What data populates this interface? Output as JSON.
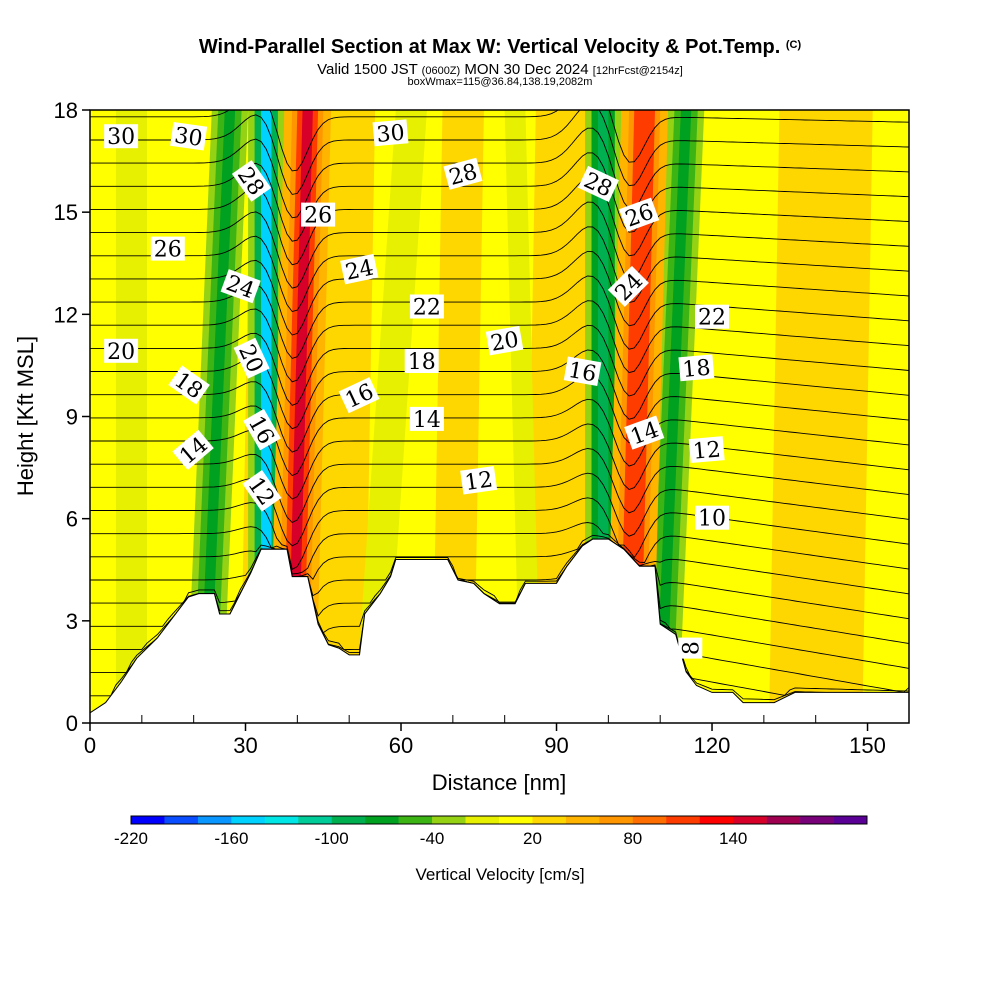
{
  "header": {
    "title_main": "Wind-Parallel Section at Max W: Vertical Velocity & Pot.Temp.",
    "title_mark": "(C)",
    "valid_prefix": "Valid 1500 JST",
    "valid_utc": "(0600Z)",
    "valid_date": "MON 30 Dec 2024",
    "fcst": "[12hrFcst@2154z]",
    "box_info": "boxWmax=115@36.84,138.19,2082m"
  },
  "colorbar": {
    "label": "Vertical Velocity [cm/s]",
    "colors": [
      "#0000ff",
      "#0a4cff",
      "#0a96ff",
      "#00d2ff",
      "#00e6e6",
      "#00cc99",
      "#00b050",
      "#00a020",
      "#3cb414",
      "#96d214",
      "#e6f000",
      "#ffff00",
      "#ffd700",
      "#ffb400",
      "#ff9600",
      "#ff6e00",
      "#ff3c00",
      "#ff0000",
      "#d70028",
      "#a00050",
      "#780078",
      "#5a0096"
    ],
    "tick_labels": [
      "-220",
      "-160",
      "-100",
      "-40",
      "20",
      "80",
      "140"
    ]
  },
  "chart_data": {
    "type": "heatmap",
    "xlabel": "Distance [nm]",
    "ylabel": "Height [Kft MSL]",
    "xlim": [
      0,
      158
    ],
    "ylim": [
      0,
      18
    ],
    "x_ticks": [
      "0",
      "30",
      "60",
      "90",
      "120",
      "150"
    ],
    "y_ticks": [
      "0",
      "3",
      "6",
      "9",
      "12",
      "15",
      "18"
    ],
    "terrain_kft": [
      [
        0,
        0.3
      ],
      [
        3,
        0.6
      ],
      [
        6,
        1.2
      ],
      [
        9,
        1.9
      ],
      [
        13,
        2.5
      ],
      [
        16,
        3.1
      ],
      [
        19,
        3.7
      ],
      [
        21,
        3.8
      ],
      [
        24,
        3.8
      ],
      [
        25,
        3.2
      ],
      [
        27,
        3.2
      ],
      [
        29,
        3.8
      ],
      [
        31,
        4.4
      ],
      [
        33,
        5.1
      ],
      [
        35,
        5.1
      ],
      [
        38,
        5.1
      ],
      [
        39,
        4.3
      ],
      [
        42,
        4.3
      ],
      [
        44,
        2.9
      ],
      [
        46,
        2.3
      ],
      [
        48,
        2.2
      ],
      [
        50,
        2.0
      ],
      [
        52,
        2.0
      ],
      [
        53,
        3.2
      ],
      [
        56,
        3.8
      ],
      [
        58,
        4.3
      ],
      [
        59,
        4.8
      ],
      [
        63,
        4.8
      ],
      [
        66,
        4.8
      ],
      [
        69,
        4.8
      ],
      [
        71,
        4.2
      ],
      [
        74,
        4.1
      ],
      [
        76,
        3.8
      ],
      [
        79,
        3.5
      ],
      [
        82,
        3.5
      ],
      [
        84,
        4.1
      ],
      [
        87,
        4.1
      ],
      [
        90,
        4.1
      ],
      [
        92,
        4.6
      ],
      [
        95,
        5.2
      ],
      [
        97,
        5.4
      ],
      [
        100,
        5.4
      ],
      [
        103,
        5.1
      ],
      [
        106,
        4.6
      ],
      [
        109,
        4.6
      ],
      [
        110,
        2.9
      ],
      [
        113,
        2.6
      ],
      [
        115,
        1.5
      ],
      [
        117,
        1.1
      ],
      [
        120,
        0.9
      ],
      [
        124,
        0.9
      ],
      [
        126,
        0.6
      ],
      [
        129,
        0.6
      ],
      [
        132,
        0.6
      ],
      [
        136,
        0.9
      ],
      [
        140,
        0.9
      ],
      [
        145,
        0.9
      ],
      [
        150,
        0.9
      ],
      [
        158,
        0.9
      ]
    ],
    "updraft_bands": [
      {
        "x_bottom": 39,
        "x_top": 42,
        "w_cms": 140
      },
      {
        "x_bottom": 104,
        "x_top": 107,
        "w_cms": 110
      }
    ],
    "downdraft_bands": [
      {
        "x_bottom": 34,
        "x_top": 34,
        "w_cms": -160
      },
      {
        "x_bottom": 22,
        "x_top": 27,
        "w_cms": -80
      },
      {
        "x_bottom": 99,
        "x_top": 99,
        "w_cms": -100
      },
      {
        "x_bottom": 110,
        "x_top": 115,
        "w_cms": -80
      }
    ],
    "contour_labels": [
      {
        "text": "30",
        "x": 6,
        "y": 17.2,
        "rot": 0
      },
      {
        "text": "30",
        "x": 19,
        "y": 17.2,
        "rot": 8
      },
      {
        "text": "30",
        "x": 58,
        "y": 17.3,
        "rot": -5
      },
      {
        "text": "28",
        "x": 31,
        "y": 15.9,
        "rot": 55
      },
      {
        "text": "28",
        "x": 72,
        "y": 16.1,
        "rot": -15
      },
      {
        "text": "28",
        "x": 98,
        "y": 15.8,
        "rot": 25
      },
      {
        "text": "26",
        "x": 15,
        "y": 13.9,
        "rot": 0
      },
      {
        "text": "26",
        "x": 44,
        "y": 14.9,
        "rot": 0
      },
      {
        "text": "26",
        "x": 106,
        "y": 14.9,
        "rot": -20
      },
      {
        "text": "24",
        "x": 29,
        "y": 12.8,
        "rot": 20
      },
      {
        "text": "24",
        "x": 52,
        "y": 13.3,
        "rot": -12
      },
      {
        "text": "24",
        "x": 104,
        "y": 12.8,
        "rot": -45
      },
      {
        "text": "22",
        "x": 65,
        "y": 12.2,
        "rot": 0
      },
      {
        "text": "22",
        "x": 120,
        "y": 11.9,
        "rot": 0
      },
      {
        "text": "20",
        "x": 6,
        "y": 10.9,
        "rot": 0
      },
      {
        "text": "20",
        "x": 31,
        "y": 10.7,
        "rot": 65
      },
      {
        "text": "20",
        "x": 80,
        "y": 11.2,
        "rot": -10
      },
      {
        "text": "18",
        "x": 19,
        "y": 9.9,
        "rot": 35
      },
      {
        "text": "18",
        "x": 64,
        "y": 10.6,
        "rot": 0
      },
      {
        "text": "18",
        "x": 117,
        "y": 10.4,
        "rot": -5
      },
      {
        "text": "16",
        "x": 33,
        "y": 8.6,
        "rot": 60
      },
      {
        "text": "16",
        "x": 52,
        "y": 9.6,
        "rot": -25
      },
      {
        "text": "16",
        "x": 95,
        "y": 10.3,
        "rot": 10
      },
      {
        "text": "14",
        "x": 20,
        "y": 8.0,
        "rot": -40
      },
      {
        "text": "14",
        "x": 65,
        "y": 8.9,
        "rot": 0
      },
      {
        "text": "14",
        "x": 107,
        "y": 8.5,
        "rot": -20
      },
      {
        "text": "12",
        "x": 33,
        "y": 6.8,
        "rot": 55
      },
      {
        "text": "12",
        "x": 75,
        "y": 7.1,
        "rot": -8
      },
      {
        "text": "12",
        "x": 119,
        "y": 8.0,
        "rot": -5
      },
      {
        "text": "10",
        "x": 120,
        "y": 6.0,
        "rot": 0
      },
      {
        "text": "8",
        "x": 116,
        "y": 2.2,
        "rot": -90
      }
    ]
  }
}
